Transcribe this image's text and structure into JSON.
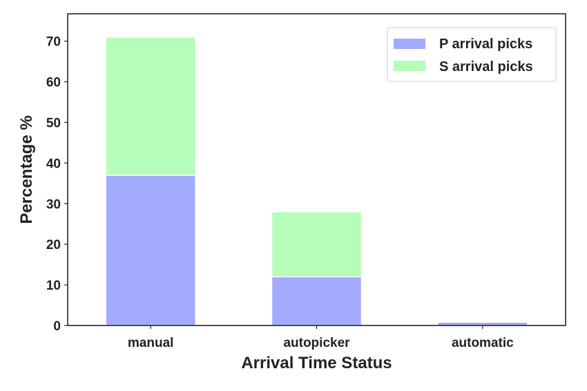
{
  "chart_data": {
    "type": "bar",
    "stacked": true,
    "categories": [
      "manual",
      "autopicker",
      "automatic"
    ],
    "series": [
      {
        "name": "P arrival picks",
        "values": [
          37,
          12,
          0.8
        ],
        "color": "#a3abfd"
      },
      {
        "name": "S arrival picks",
        "values": [
          34,
          16,
          0
        ],
        "color": "#b5fdb9"
      }
    ],
    "xlabel": "Arrival Time Status",
    "ylabel": "Percentage %",
    "ylim": [
      0,
      75
    ],
    "yticks": [
      0,
      10,
      20,
      30,
      40,
      50,
      60,
      70
    ],
    "grid": false,
    "legend_position": "top-right"
  }
}
